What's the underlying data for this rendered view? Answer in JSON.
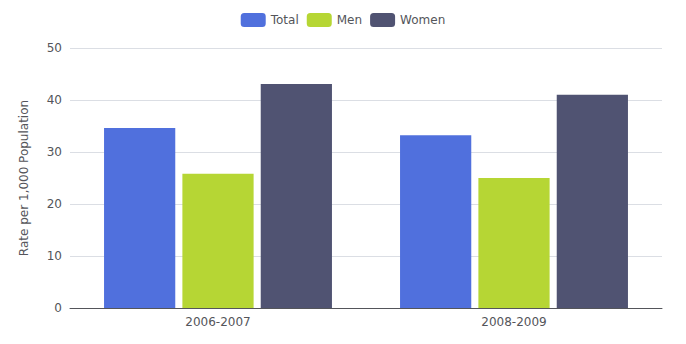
{
  "chart_data": {
    "type": "bar",
    "categories": [
      "2006-2007",
      "2008-2009"
    ],
    "series": [
      {
        "name": "Total",
        "values": [
          34.6,
          33.2
        ]
      },
      {
        "name": "Men",
        "values": [
          25.8,
          25.0
        ]
      },
      {
        "name": "Women",
        "values": [
          43.1,
          41.0
        ]
      }
    ],
    "ylabel": "Rate per 1,000 Population",
    "ylim": [
      0,
      50
    ],
    "yticks": [
      0,
      10,
      20,
      30,
      40,
      50
    ],
    "grid": true,
    "legend": "top"
  }
}
